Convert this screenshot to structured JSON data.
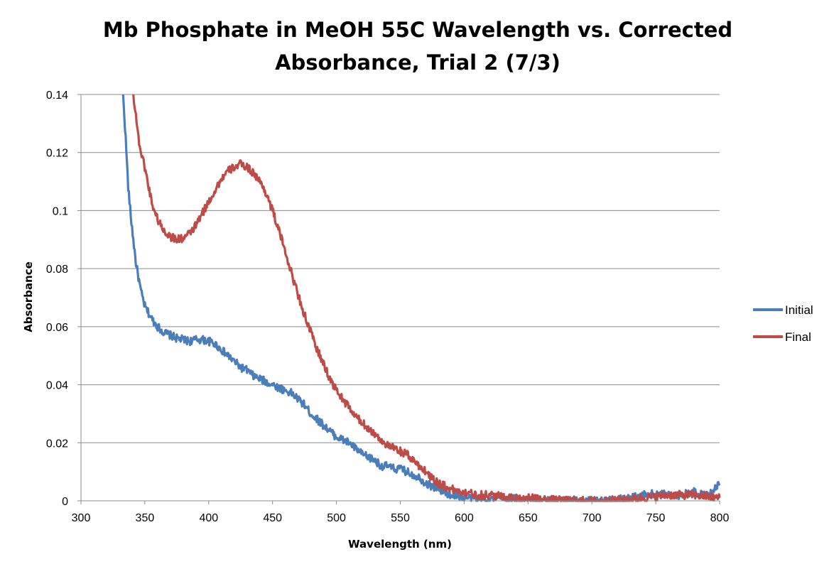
{
  "chart_data": {
    "type": "line",
    "title_lines": [
      "Mb Phosphate in MeOH 55C Wavelength vs. Corrected",
      "Absorbance, Trial 2 (7/3)"
    ],
    "xlabel": "Wavelength (nm)",
    "ylabel": "Absorbance",
    "xlim": [
      300,
      800
    ],
    "ylim": [
      0,
      0.14
    ],
    "x_ticks": [
      "300",
      "350",
      "400",
      "450",
      "500",
      "550",
      "600",
      "650",
      "700",
      "750",
      "800"
    ],
    "y_ticks": [
      "0",
      "0.02",
      "0.04",
      "0.06",
      "0.08",
      "0.1",
      "0.12",
      "0.14"
    ],
    "grid": "horizontal",
    "legend_position": "right",
    "series": [
      {
        "name": "Initial",
        "color": "#4a7ebb",
        "x": [
          333,
          335,
          337,
          339,
          341,
          343,
          345,
          347,
          350,
          355,
          360,
          365,
          370,
          375,
          380,
          385,
          390,
          395,
          400,
          405,
          410,
          415,
          420,
          425,
          430,
          435,
          440,
          445,
          450,
          455,
          460,
          465,
          470,
          475,
          480,
          485,
          490,
          495,
          500,
          505,
          510,
          515,
          520,
          525,
          530,
          535,
          540,
          545,
          550,
          555,
          560,
          565,
          570,
          575,
          580,
          585,
          590,
          595,
          600,
          610,
          620,
          630,
          640,
          650,
          660,
          670,
          680,
          690,
          700,
          710,
          720,
          730,
          740,
          750,
          760,
          770,
          780,
          790,
          800
        ],
        "y": [
          0.14,
          0.125,
          0.108,
          0.098,
          0.09,
          0.082,
          0.077,
          0.072,
          0.067,
          0.063,
          0.06,
          0.058,
          0.057,
          0.056,
          0.0555,
          0.055,
          0.0555,
          0.0555,
          0.055,
          0.054,
          0.052,
          0.05,
          0.048,
          0.046,
          0.045,
          0.043,
          0.042,
          0.041,
          0.04,
          0.039,
          0.038,
          0.037,
          0.035,
          0.033,
          0.03,
          0.028,
          0.026,
          0.024,
          0.022,
          0.021,
          0.02,
          0.018,
          0.016,
          0.015,
          0.014,
          0.012,
          0.012,
          0.011,
          0.011,
          0.01,
          0.009,
          0.008,
          0.006,
          0.005,
          0.004,
          0.003,
          0.002,
          0.002,
          0.001,
          0.001,
          0.0005,
          0.001,
          0.0008,
          0.0005,
          0.0,
          0.0,
          0.0003,
          0.0,
          0.0,
          0.0,
          0.0005,
          0.001,
          0.002,
          0.0025,
          0.002,
          0.002,
          0.003,
          0.002,
          0.006
        ]
      },
      {
        "name": "Final",
        "color": "#be4b48",
        "x": [
          341,
          343,
          345,
          347,
          350,
          353,
          356,
          360,
          365,
          370,
          375,
          380,
          385,
          390,
          395,
          400,
          405,
          410,
          415,
          420,
          425,
          430,
          435,
          440,
          445,
          450,
          455,
          460,
          465,
          470,
          475,
          480,
          485,
          490,
          495,
          500,
          505,
          510,
          515,
          520,
          525,
          530,
          535,
          540,
          545,
          550,
          555,
          560,
          565,
          570,
          575,
          580,
          585,
          590,
          595,
          600,
          610,
          620,
          630,
          640,
          650,
          660,
          670,
          680,
          690,
          700,
          710,
          720,
          730,
          740,
          750,
          760,
          770,
          780,
          790,
          800
        ],
        "y": [
          0.14,
          0.133,
          0.125,
          0.12,
          0.115,
          0.108,
          0.102,
          0.097,
          0.093,
          0.091,
          0.09,
          0.0905,
          0.092,
          0.095,
          0.099,
          0.103,
          0.107,
          0.111,
          0.1135,
          0.115,
          0.116,
          0.115,
          0.113,
          0.11,
          0.106,
          0.1,
          0.093,
          0.086,
          0.078,
          0.071,
          0.064,
          0.058,
          0.052,
          0.047,
          0.042,
          0.038,
          0.035,
          0.032,
          0.029,
          0.027,
          0.025,
          0.023,
          0.021,
          0.019,
          0.018,
          0.017,
          0.016,
          0.014,
          0.012,
          0.01,
          0.008,
          0.006,
          0.005,
          0.004,
          0.0035,
          0.003,
          0.002,
          0.002,
          0.0015,
          0.001,
          0.001,
          0.0005,
          0.0003,
          0.0,
          0.0,
          0.0,
          0.0,
          0.0003,
          0.0005,
          0.001,
          0.0015,
          0.002,
          0.002,
          0.002,
          0.0015,
          0.001
        ]
      }
    ]
  }
}
